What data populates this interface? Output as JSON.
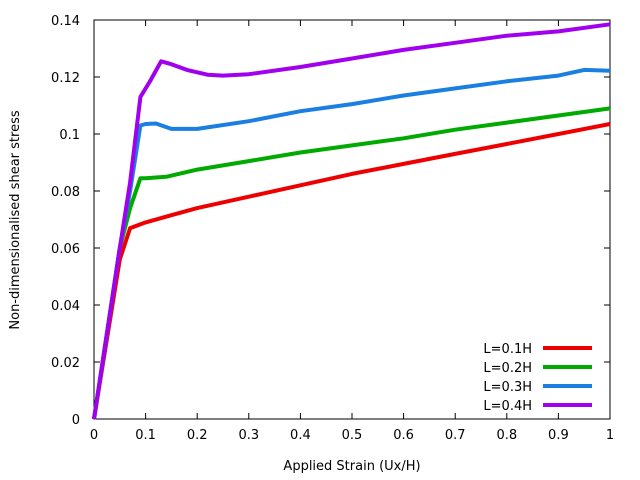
{
  "chart_data": {
    "type": "line",
    "xlabel": "Applied Strain (Ux/H)",
    "ylabel": "Non-dimensionalised shear stress",
    "xlim": [
      0,
      1
    ],
    "ylim": [
      0,
      0.14
    ],
    "xticks": [
      0,
      0.1,
      0.2,
      0.3,
      0.4,
      0.5,
      0.6,
      0.7,
      0.8,
      0.9,
      1
    ],
    "xtick_labels": [
      "0",
      "0.1",
      "0.2",
      "0.3",
      "0.4",
      "0.5",
      "0.6",
      "0.7",
      "0.8",
      "0.9",
      "1"
    ],
    "yticks": [
      0,
      0.02,
      0.04,
      0.06,
      0.08,
      0.1,
      0.12,
      0.14
    ],
    "ytick_labels": [
      "0",
      "0.02",
      "0.04",
      "0.06",
      "0.08",
      "0.1",
      "0.12",
      "0.14"
    ],
    "grid": false,
    "legend_position": "bottom-right",
    "series": [
      {
        "name": "L=0.1H",
        "color": "#ee0000",
        "points": [
          [
            0,
            0
          ],
          [
            0.05,
            0.056
          ],
          [
            0.07,
            0.067
          ],
          [
            0.1,
            0.069
          ],
          [
            0.15,
            0.0715
          ],
          [
            0.2,
            0.074
          ],
          [
            0.3,
            0.078
          ],
          [
            0.4,
            0.082
          ],
          [
            0.5,
            0.086
          ],
          [
            0.6,
            0.0895
          ],
          [
            0.7,
            0.093
          ],
          [
            0.8,
            0.0965
          ],
          [
            0.9,
            0.1
          ],
          [
            1.0,
            0.1035
          ]
        ]
      },
      {
        "name": "L=0.2H",
        "color": "#00aa00",
        "points": [
          [
            0,
            0
          ],
          [
            0.05,
            0.06
          ],
          [
            0.07,
            0.074
          ],
          [
            0.09,
            0.0845
          ],
          [
            0.1,
            0.0845
          ],
          [
            0.14,
            0.085
          ],
          [
            0.2,
            0.0875
          ],
          [
            0.3,
            0.0905
          ],
          [
            0.4,
            0.0935
          ],
          [
            0.5,
            0.096
          ],
          [
            0.6,
            0.0985
          ],
          [
            0.7,
            0.1015
          ],
          [
            0.8,
            0.104
          ],
          [
            0.9,
            0.1065
          ],
          [
            1.0,
            0.109
          ]
        ]
      },
      {
        "name": "L=0.3H",
        "color": "#1a7fe0",
        "points": [
          [
            0,
            0
          ],
          [
            0.05,
            0.06
          ],
          [
            0.07,
            0.08
          ],
          [
            0.09,
            0.103
          ],
          [
            0.1,
            0.1035
          ],
          [
            0.12,
            0.1037
          ],
          [
            0.15,
            0.1018
          ],
          [
            0.2,
            0.1018
          ],
          [
            0.3,
            0.1045
          ],
          [
            0.4,
            0.108
          ],
          [
            0.5,
            0.1105
          ],
          [
            0.6,
            0.1135
          ],
          [
            0.7,
            0.116
          ],
          [
            0.8,
            0.1185
          ],
          [
            0.9,
            0.1205
          ],
          [
            0.95,
            0.1225
          ],
          [
            1.0,
            0.1222
          ]
        ]
      },
      {
        "name": "L=0.4H",
        "color": "#a000ee",
        "points": [
          [
            0,
            0
          ],
          [
            0.05,
            0.06
          ],
          [
            0.07,
            0.083
          ],
          [
            0.09,
            0.113
          ],
          [
            0.11,
            0.119
          ],
          [
            0.13,
            0.1255
          ],
          [
            0.15,
            0.1245
          ],
          [
            0.18,
            0.1225
          ],
          [
            0.22,
            0.1208
          ],
          [
            0.25,
            0.1205
          ],
          [
            0.3,
            0.121
          ],
          [
            0.4,
            0.1235
          ],
          [
            0.5,
            0.1265
          ],
          [
            0.6,
            0.1295
          ],
          [
            0.7,
            0.132
          ],
          [
            0.8,
            0.1345
          ],
          [
            0.9,
            0.136
          ],
          [
            1.0,
            0.1385
          ]
        ]
      }
    ]
  }
}
